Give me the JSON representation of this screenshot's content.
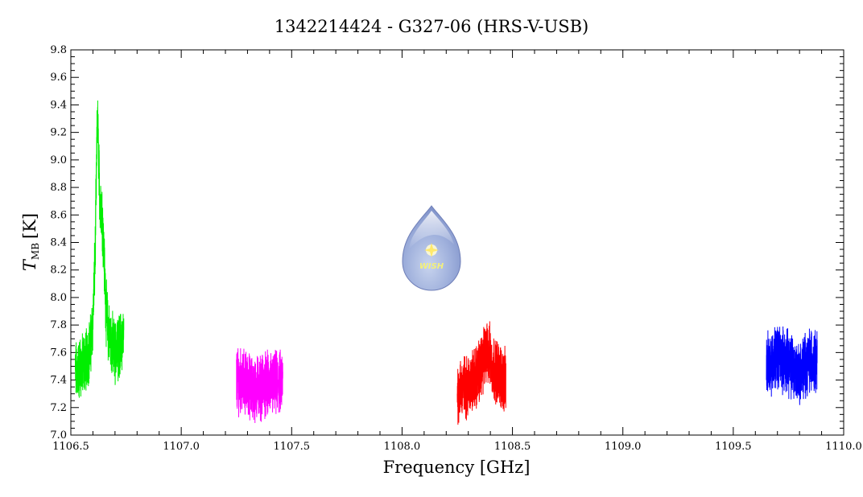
{
  "chart_data": {
    "type": "line",
    "title": "1342214424 - G327-06 (HRS-V-USB)",
    "xlabel": "Frequency [GHz]",
    "ylabel_main": "T",
    "ylabel_sub": "MB",
    "ylabel_unit": "[K]",
    "xlim": [
      1106.5,
      1110.0
    ],
    "ylim": [
      7.0,
      9.8
    ],
    "xticks": [
      "1106.5",
      "1107.0",
      "1107.5",
      "1108.0",
      "1108.5",
      "1109.0",
      "1109.5",
      "1110.0"
    ],
    "yticks": [
      "7.0",
      "7.2",
      "7.4",
      "7.6",
      "7.8",
      "8.0",
      "8.2",
      "8.4",
      "8.6",
      "8.8",
      "9.0",
      "9.2",
      "9.4",
      "9.6",
      "9.8"
    ],
    "grid": false,
    "series": [
      {
        "color": "#00ee00",
        "x": [
          1106.52,
          1106.55,
          1106.57,
          1106.59,
          1106.6,
          1106.61,
          1106.615,
          1106.62,
          1106.625,
          1106.63,
          1106.64,
          1106.645,
          1106.65,
          1106.66,
          1106.67,
          1106.68,
          1106.7,
          1106.72,
          1106.74
        ],
        "y": [
          7.45,
          7.5,
          7.55,
          7.65,
          7.85,
          8.3,
          8.8,
          9.3,
          9.1,
          8.75,
          8.65,
          8.5,
          8.3,
          7.9,
          7.75,
          7.7,
          7.6,
          7.65,
          7.7
        ]
      },
      {
        "color": "#ff00ff",
        "x": [
          1107.25,
          1107.29,
          1107.33,
          1107.37,
          1107.41,
          1107.46
        ],
        "y": [
          7.4,
          7.38,
          7.33,
          7.36,
          7.37,
          7.38
        ]
      },
      {
        "color": "#ff0000",
        "x": [
          1108.25,
          1108.3,
          1108.34,
          1108.37,
          1108.39,
          1108.41,
          1108.44,
          1108.47
        ],
        "y": [
          7.32,
          7.36,
          7.42,
          7.55,
          7.62,
          7.5,
          7.45,
          7.38
        ]
      },
      {
        "color": "#0000ff",
        "x": [
          1109.65,
          1109.7,
          1109.75,
          1109.8,
          1109.84,
          1109.88
        ],
        "y": [
          7.5,
          7.58,
          7.52,
          7.45,
          7.55,
          7.55
        ]
      }
    ]
  },
  "logo": {
    "text": "WISH"
  }
}
